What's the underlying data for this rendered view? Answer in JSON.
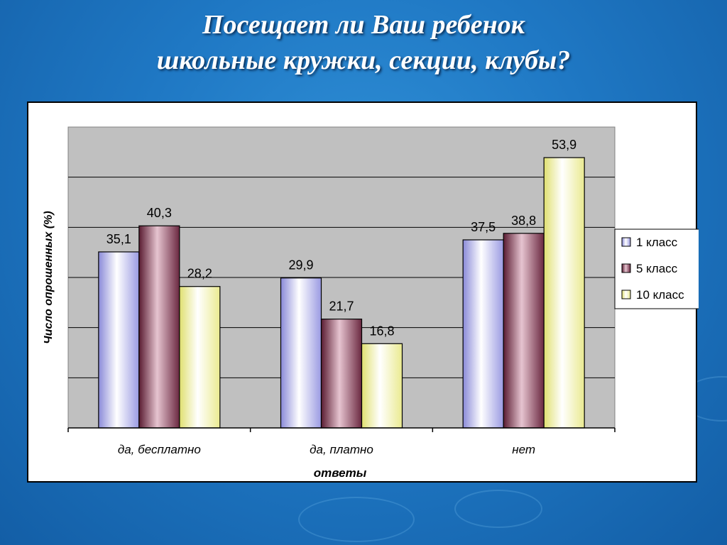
{
  "slide": {
    "title_line1": "Посещает ли Ваш ребенок",
    "title_line2": "школьные кружки, секции, клубы?"
  },
  "colors": {
    "background": "#1f78c4",
    "plot_area": "#c0c0c0",
    "series_1": "#d6d6ff",
    "series_2": "#8c3a50",
    "series_3": "#ffffc0"
  },
  "chart_data": {
    "type": "bar",
    "title": "",
    "xlabel": "ответы",
    "ylabel": "Число опрошенных (%)",
    "categories": [
      "да, бесплатно",
      "да, платно",
      "нет"
    ],
    "series": [
      {
        "name": "1 класс",
        "values": [
          35.1,
          29.9,
          37.5
        ]
      },
      {
        "name": "5 класс",
        "values": [
          40.3,
          21.7,
          38.8
        ]
      },
      {
        "name": "10 класс",
        "values": [
          28.2,
          16.8,
          53.9
        ]
      }
    ],
    "value_labels": [
      [
        "35,1",
        "29,9",
        "37,5"
      ],
      [
        "40,3",
        "21,7",
        "38,8"
      ],
      [
        "28,2",
        "16,8",
        "53,9"
      ]
    ],
    "ylim": [
      0,
      60
    ],
    "grid": true,
    "legend": "right"
  }
}
